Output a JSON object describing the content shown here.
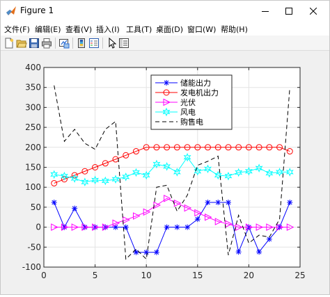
{
  "window": {
    "title": "Figure 1"
  },
  "menu": {
    "items": [
      "文件(F)",
      "编辑(E)",
      "查看(V)",
      "插入(I)",
      "工具(T)",
      "桌面(D)",
      "窗口(W)",
      "帮助(H)"
    ]
  },
  "toolbar": {
    "buttons": [
      "new-figure",
      "open-file",
      "save-figure",
      "print-figure",
      "link-plot",
      "insert-colorbar",
      "insert-legend",
      "edit-plot",
      "property-inspector"
    ]
  },
  "chart_data": {
    "type": "line",
    "x": [
      1,
      2,
      3,
      4,
      5,
      6,
      7,
      8,
      9,
      10,
      11,
      12,
      13,
      14,
      15,
      16,
      17,
      18,
      19,
      20,
      21,
      22,
      23,
      24
    ],
    "xlim": [
      0,
      25
    ],
    "ylim": [
      -100,
      400
    ],
    "xticks": [
      "0",
      "5",
      "10",
      "15",
      "20",
      "25"
    ],
    "yticks": [
      "-100",
      "-50",
      "0",
      "50",
      "100",
      "150",
      "200",
      "250",
      "300",
      "350",
      "400"
    ],
    "grid": true,
    "legend_position": "top-center",
    "series": [
      {
        "name": "储能出力",
        "color": "#0000ff",
        "marker": "asterisk",
        "dash": "solid",
        "values": [
          62,
          0,
          47,
          0,
          0,
          0,
          0,
          0,
          -63,
          -63,
          -63,
          0,
          0,
          0,
          20,
          62,
          62,
          62,
          -62,
          0,
          -62,
          -30,
          0,
          62
        ]
      },
      {
        "name": "发电机出力",
        "color": "#ff0000",
        "marker": "circle",
        "dash": "solid",
        "values": [
          110,
          120,
          130,
          140,
          150,
          160,
          170,
          180,
          190,
          200,
          200,
          200,
          200,
          200,
          200,
          200,
          200,
          200,
          200,
          200,
          200,
          200,
          200,
          190
        ]
      },
      {
        "name": "光伏",
        "color": "#ff00ff",
        "marker": "triangle-right",
        "dash": "solid",
        "values": [
          0,
          0,
          0,
          0,
          0,
          0,
          10,
          18,
          28,
          38,
          55,
          72,
          60,
          48,
          36,
          25,
          14,
          8,
          0,
          0,
          0,
          0,
          0,
          0
        ]
      },
      {
        "name": "风电",
        "color": "#00ffff",
        "marker": "hexagram",
        "dash": "solid",
        "values": [
          132,
          128,
          122,
          113,
          118,
          116,
          120,
          126,
          137,
          130,
          158,
          152,
          138,
          175,
          140,
          146,
          130,
          128,
          137,
          140,
          148,
          135,
          138,
          138
        ]
      },
      {
        "name": "购售电",
        "color": "#000000",
        "marker": "none",
        "dash": "dashed",
        "values": [
          355,
          215,
          245,
          210,
          195,
          245,
          265,
          -80,
          -55,
          -80,
          100,
          105,
          40,
          80,
          155,
          165,
          178,
          -70,
          30,
          -40,
          -20,
          -25,
          20,
          350
        ]
      }
    ]
  }
}
